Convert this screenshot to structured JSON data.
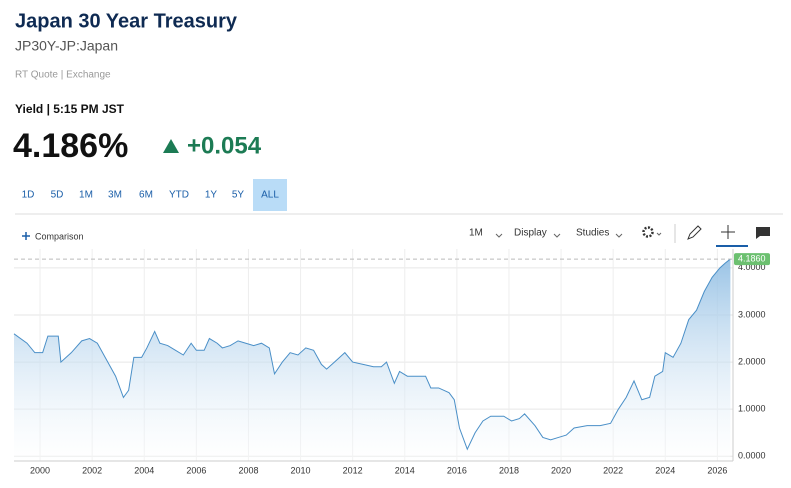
{
  "header": {
    "title": "Japan 30 Year Treasury",
    "symbol": "JP30Y-JP:Japan",
    "source": "RT Quote | Exchange",
    "quote_time": "Yield | 5:15 PM JST",
    "price": "4.186%",
    "change": "+0.054"
  },
  "ranges": [
    "1D",
    "5D",
    "1M",
    "3M",
    "6M",
    "YTD",
    "1Y",
    "5Y",
    "ALL"
  ],
  "active_range": "ALL",
  "toolbar": {
    "comparison": "Comparison",
    "interval": "1M",
    "display": "Display",
    "studies": "Studies"
  },
  "chart_data": {
    "type": "area",
    "color": "#4a8fc7",
    "grid": true,
    "x": [
      1999.0,
      1999.5,
      1999.8,
      2000.1,
      2000.3,
      2000.7,
      2000.8,
      2001.2,
      2001.6,
      2001.9,
      2002.2,
      2002.5,
      2002.9,
      2003.2,
      2003.4,
      2003.6,
      2003.9,
      2004.1,
      2004.4,
      2004.6,
      2004.9,
      2005.2,
      2005.5,
      2005.8,
      2006.0,
      2006.3,
      2006.5,
      2006.8,
      2007.0,
      2007.3,
      2007.6,
      2007.9,
      2008.2,
      2008.5,
      2008.8,
      2009.0,
      2009.3,
      2009.6,
      2009.9,
      2010.2,
      2010.5,
      2010.8,
      2011.0,
      2011.3,
      2011.7,
      2012.0,
      2012.4,
      2012.8,
      2013.1,
      2013.3,
      2013.6,
      2013.8,
      2014.1,
      2014.4,
      2014.8,
      2015.0,
      2015.3,
      2015.5,
      2015.7,
      2015.9,
      2016.1,
      2016.4,
      2016.7,
      2017.0,
      2017.3,
      2017.8,
      2018.1,
      2018.4,
      2018.6,
      2019.0,
      2019.3,
      2019.6,
      2019.9,
      2020.2,
      2020.5,
      2021.0,
      2021.5,
      2021.9,
      2022.2,
      2022.5,
      2022.8,
      2023.1,
      2023.4,
      2023.6,
      2023.9,
      2024.0,
      2024.3,
      2024.6,
      2024.9,
      2025.2,
      2025.5,
      2025.8,
      2026.1,
      2026.3,
      2026.5
    ],
    "series": [
      {
        "name": "JP30Y",
        "values": [
          2.6,
          2.4,
          2.2,
          2.2,
          2.55,
          2.55,
          2.0,
          2.2,
          2.45,
          2.5,
          2.4,
          2.1,
          1.7,
          1.25,
          1.4,
          2.1,
          2.1,
          2.3,
          2.65,
          2.4,
          2.35,
          2.25,
          2.15,
          2.4,
          2.25,
          2.25,
          2.5,
          2.4,
          2.3,
          2.35,
          2.45,
          2.4,
          2.35,
          2.4,
          2.3,
          1.75,
          2.0,
          2.2,
          2.15,
          2.3,
          2.25,
          1.95,
          1.85,
          2.0,
          2.2,
          2.0,
          1.95,
          1.9,
          1.9,
          2.0,
          1.55,
          1.8,
          1.7,
          1.7,
          1.7,
          1.45,
          1.45,
          1.4,
          1.35,
          1.2,
          0.6,
          0.15,
          0.5,
          0.75,
          0.85,
          0.85,
          0.75,
          0.8,
          0.9,
          0.65,
          0.4,
          0.35,
          0.4,
          0.45,
          0.6,
          0.65,
          0.65,
          0.7,
          1.0,
          1.25,
          1.6,
          1.2,
          1.25,
          1.7,
          1.8,
          2.2,
          2.1,
          2.4,
          2.9,
          3.1,
          3.5,
          3.8,
          4.0,
          4.1,
          4.186
        ]
      }
    ],
    "last_label": "4.1860",
    "xlim": [
      1999,
      2026.6
    ],
    "ylim": [
      -0.1,
      4.4
    ],
    "xticks": [
      2000,
      2002,
      2004,
      2006,
      2008,
      2010,
      2012,
      2014,
      2016,
      2018,
      2020,
      2022,
      2024,
      2026
    ],
    "yticks": [
      {
        "value": 0,
        "label": "0.0000"
      },
      {
        "value": 1,
        "label": "1.0000"
      },
      {
        "value": 2,
        "label": "2.0000"
      },
      {
        "value": 3,
        "label": "3.0000"
      },
      {
        "value": 4,
        "label": "4.0000"
      }
    ]
  }
}
